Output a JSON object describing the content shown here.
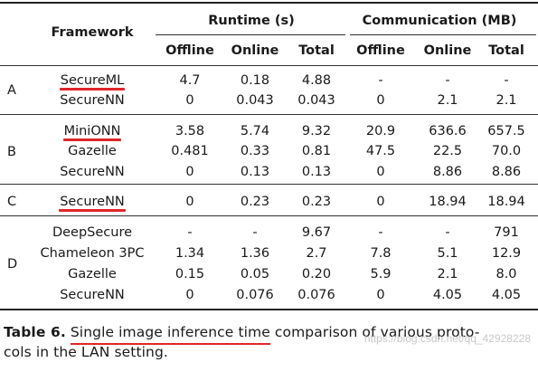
{
  "header": {
    "framework": "Framework",
    "runtime": "Runtime (s)",
    "communication": "Communication (MB)",
    "cols": [
      "Offline",
      "Online",
      "Total",
      "Offline",
      "Online",
      "Total"
    ]
  },
  "groups": [
    {
      "label": "A",
      "rows": [
        {
          "name": "SecureML",
          "cells": [
            "4.7",
            "0.18",
            "4.88",
            "-",
            "-",
            "-"
          ],
          "highlight": true
        },
        {
          "name": "SecureNN",
          "cells": [
            "0",
            "0.043",
            "0.043",
            "0",
            "2.1",
            "2.1"
          ],
          "highlight": false
        }
      ]
    },
    {
      "label": "B",
      "rows": [
        {
          "name": "MiniONN",
          "cells": [
            "3.58",
            "5.74",
            "9.32",
            "20.9",
            "636.6",
            "657.5"
          ],
          "highlight": true
        },
        {
          "name": "Gazelle",
          "cells": [
            "0.481",
            "0.33",
            "0.81",
            "47.5",
            "22.5",
            "70.0"
          ],
          "highlight": false
        },
        {
          "name": "SecureNN",
          "cells": [
            "0",
            "0.13",
            "0.13",
            "0",
            "8.86",
            "8.86"
          ],
          "highlight": false
        }
      ]
    },
    {
      "label": "C",
      "rows": [
        {
          "name": "SecureNN",
          "cells": [
            "0",
            "0.23",
            "0.23",
            "0",
            "18.94",
            "18.94"
          ],
          "highlight": true
        }
      ]
    },
    {
      "label": "D",
      "rows": [
        {
          "name": "DeepSecure",
          "cells": [
            "-",
            "-",
            "9.67",
            "-",
            "-",
            "791"
          ],
          "highlight": false
        },
        {
          "name": "Chameleon 3PC",
          "cells": [
            "1.34",
            "1.36",
            "2.7",
            "7.8",
            "5.1",
            "12.9"
          ],
          "highlight": false
        },
        {
          "name": "Gazelle",
          "cells": [
            "0.15",
            "0.05",
            "0.20",
            "5.9",
            "2.1",
            "8.0"
          ],
          "highlight": false
        },
        {
          "name": "SecureNN",
          "cells": [
            "0",
            "0.076",
            "0.076",
            "0",
            "4.05",
            "4.05"
          ],
          "highlight": false
        }
      ]
    }
  ],
  "caption": {
    "label": "Table 6.",
    "underlined": "Single image inference time",
    "rest": " comparison of various proto-",
    "line2": "cols in the LAN setting."
  },
  "watermark": "https://blog.csdn.net/qq_42928228",
  "colors": {
    "highlight": "#e0262a",
    "text": "#1a1a1a"
  }
}
